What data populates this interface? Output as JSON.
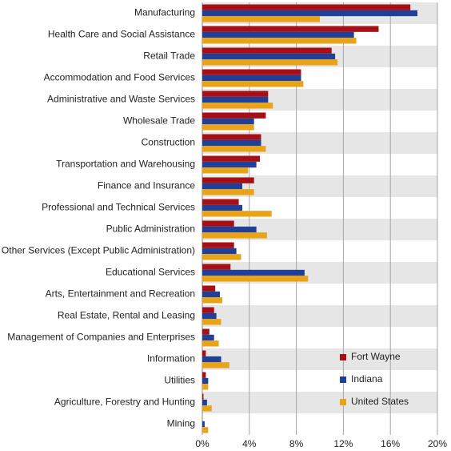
{
  "chart_data": {
    "type": "hbar",
    "categories": [
      "Manufacturing",
      "Health Care and Social Assistance",
      "Retail Trade",
      "Accommodation and Food Services",
      "Administrative and Waste Services",
      "Wholesale Trade",
      "Construction",
      "Transportation and Warehousing",
      "Finance and Insurance",
      "Professional and Technical Services",
      "Public Administration",
      "Other Services (Except Public Administration)",
      "Educational Services",
      "Arts, Entertainment and Recreation",
      "Real Estate, Rental and Leasing",
      "Management of Companies and Enterprises",
      "Information",
      "Utilities",
      "Agriculture, Forestry and Hunting",
      "Mining"
    ],
    "series": [
      {
        "name": "Fort Wayne",
        "color": "#a50f15",
        "values": [
          17.7,
          15.0,
          11.0,
          8.4,
          5.6,
          5.4,
          5.0,
          4.9,
          4.4,
          3.1,
          2.7,
          2.7,
          2.4,
          1.1,
          1.0,
          0.6,
          0.3,
          0.3,
          0.1,
          0
        ]
      },
      {
        "name": "Indiana",
        "color": "#1f3f99",
        "values": [
          18.3,
          12.9,
          11.3,
          8.4,
          5.6,
          4.4,
          5.0,
          4.6,
          3.4,
          3.4,
          4.6,
          2.9,
          8.7,
          1.5,
          1.2,
          1.0,
          1.6,
          0.5,
          0.4,
          0.2
        ]
      },
      {
        "name": "United States",
        "color": "#e8a317",
        "values": [
          10.0,
          13.1,
          11.5,
          8.6,
          6.0,
          4.4,
          5.4,
          3.9,
          4.4,
          5.9,
          5.5,
          3.3,
          9.0,
          1.7,
          1.6,
          1.4,
          2.3,
          0.5,
          0.8,
          0.5
        ]
      }
    ],
    "xlim": [
      0,
      20
    ],
    "xticks": [
      {
        "value": 0,
        "label": "0%"
      },
      {
        "value": 4,
        "label": "4%"
      },
      {
        "value": 8,
        "label": "8%"
      },
      {
        "value": 12,
        "label": "12%"
      },
      {
        "value": 16,
        "label": "16%"
      },
      {
        "value": 20,
        "label": "20%"
      }
    ],
    "grid": true,
    "legend": "lower-right"
  }
}
